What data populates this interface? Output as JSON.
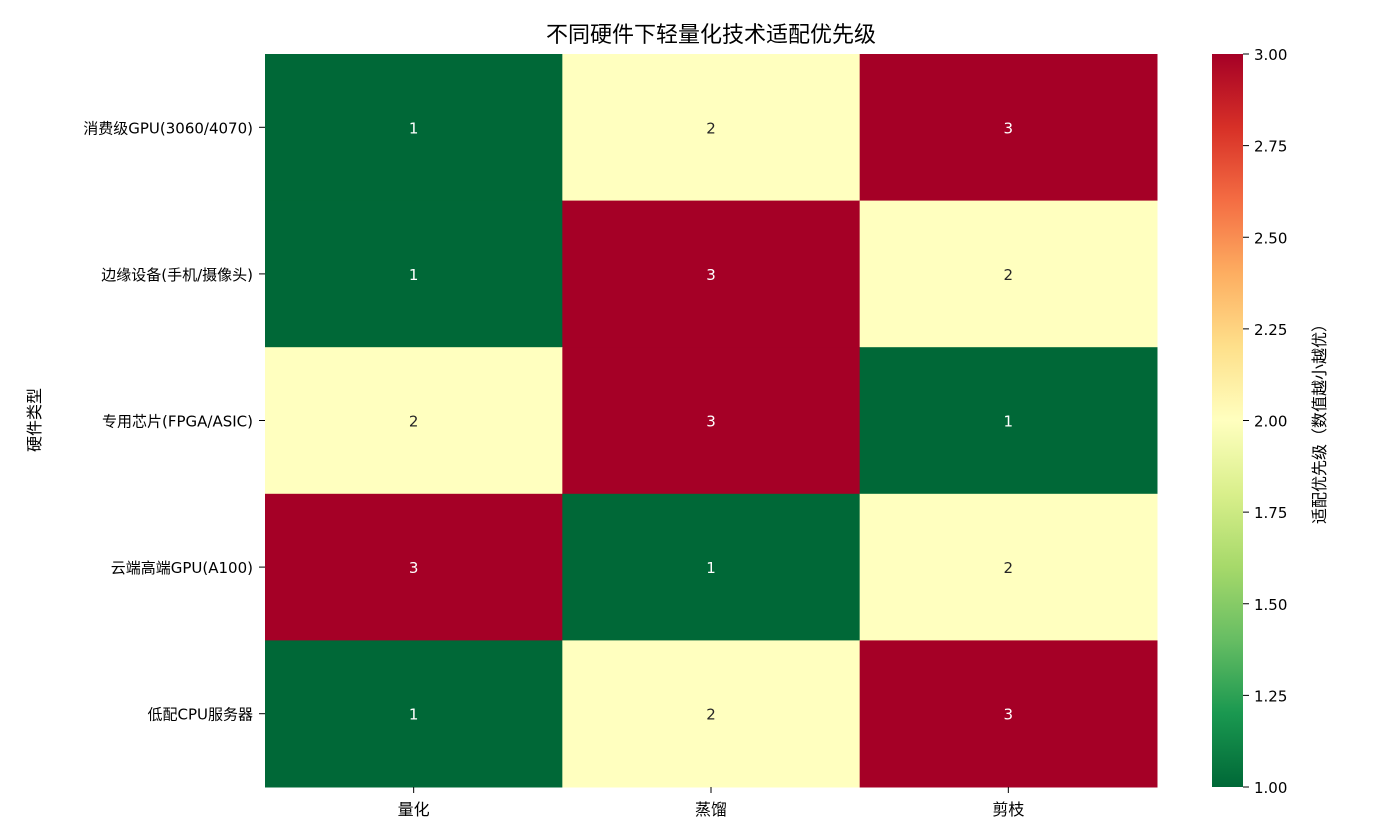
{
  "chart_data": {
    "type": "heatmap",
    "title": "不同硬件下轻量化技术适配优先级",
    "xlabel": "",
    "ylabel": "硬件类型",
    "x_categories": [
      "量化",
      "蒸馏",
      "剪枝"
    ],
    "y_categories": [
      "消费级GPU(3060/4070)",
      "边缘设备(手机/摄像头)",
      "专用芯片(FPGA/ASIC)",
      "云端高端GPU(A100)",
      "低配CPU服务器"
    ],
    "values": [
      [
        1,
        2,
        3
      ],
      [
        1,
        3,
        2
      ],
      [
        2,
        3,
        1
      ],
      [
        3,
        1,
        2
      ],
      [
        1,
        2,
        3
      ]
    ],
    "colormap": "RdYlGn_r",
    "colors": {
      "low": "#006837",
      "mid": "#ffffbf",
      "high": "#a50026"
    },
    "colorbar": {
      "label": "适配优先级（数值越小越优）",
      "range": [
        1,
        3
      ],
      "ticks": [
        "1.00",
        "1.25",
        "1.50",
        "1.75",
        "2.00",
        "2.25",
        "2.50",
        "2.75",
        "3.00"
      ]
    },
    "annotations": true
  }
}
